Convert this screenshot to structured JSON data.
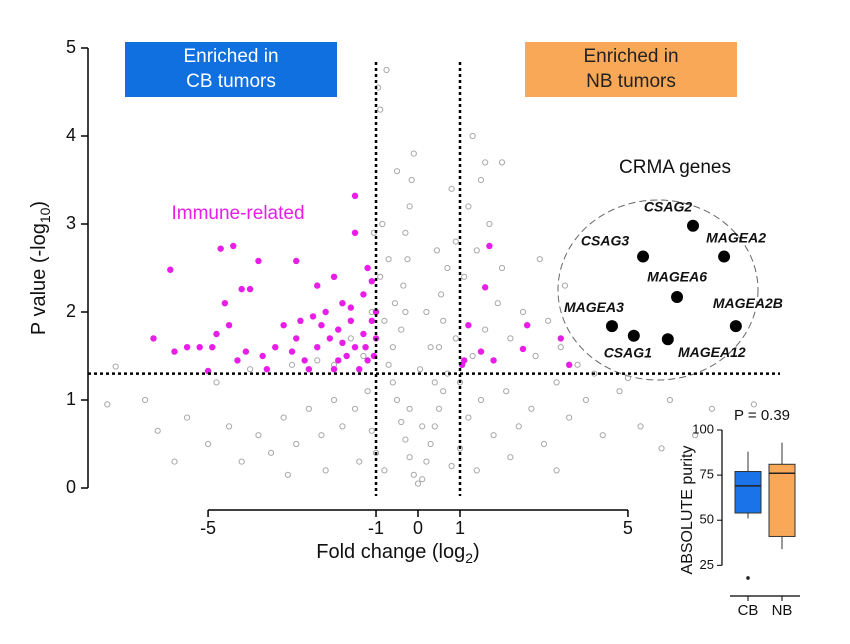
{
  "chart_data": [
    {
      "type": "scatter",
      "xlabel": {
        "text": "Fold change (log",
        "sub": "2",
        "end": ")"
      },
      "ylabel": {
        "text": "P value (-log",
        "sub": "10",
        "end": ")"
      },
      "xlim": [
        -7.86,
        8.86
      ],
      "ylim": [
        0,
        5
      ],
      "xticks": [
        -5,
        -1,
        0,
        1,
        5
      ],
      "yticks": [
        0,
        1,
        2,
        3,
        4,
        5
      ],
      "thresholds": {
        "x": [
          -1,
          1
        ],
        "y": 1.3
      },
      "banners": [
        {
          "lines": [
            "Enriched in",
            "CB tumors"
          ],
          "color": "#1070e0"
        },
        {
          "lines": [
            "Enriched in",
            "NB tumors"
          ],
          "color": "#f9a857"
        }
      ],
      "series": [
        {
          "color": "#a8a8a8",
          "x": [
            0,
            0.1,
            -0.1,
            0.2,
            -0.2,
            0.3,
            -0.3,
            0.4,
            -0.4,
            0.5,
            -0.5,
            0.6,
            -0.6,
            0.7,
            -0.7,
            0.3,
            -0.4,
            -0.3,
            -0.35,
            -0.25,
            -0.3,
            -0.2,
            -0.15,
            -0.1,
            0.5,
            0.6,
            0.55,
            0.7,
            0.9,
            -0.6,
            -0.55,
            -0.8,
            -0.9,
            -1.2,
            -1.5,
            -1.8,
            -2.0,
            -2.3,
            -2.6,
            -2.9,
            -3.2,
            -3.5,
            -3.8,
            -4.2,
            -4.5,
            -5.0,
            -5.5,
            -6.5,
            -7.4,
            -7.2,
            -1.0,
            -0.8,
            0.8,
            1.0,
            1.2,
            1.5,
            1.8,
            2.1,
            2.4,
            2.7,
            3.0,
            3.3,
            3.6,
            4.0,
            4.4,
            4.8,
            5.3,
            6.0,
            7.0,
            8.0,
            1.3,
            1.6,
            1.9,
            2.2,
            2.5,
            2.8,
            3.1,
            3.4,
            3.8,
            1.1,
            1.4,
            1.7,
            2.0,
            1.2,
            1.5,
            1.3,
            1.6,
            2.0,
            -0.9,
            -0.95,
            -0.75,
            -1.3,
            -1.6,
            -2.0,
            -2.4,
            -1.1,
            -1.05,
            -0.85,
            -4.0,
            -3.0,
            0.4,
            -0.2,
            0.1,
            0.05,
            -0.5,
            0.45,
            0.8,
            1.0,
            -1.1,
            -1.4,
            1.4,
            2.2,
            -2.2,
            -3.1,
            3.3,
            5.8,
            -5.8,
            -6.2,
            6.6,
            4.2,
            5.0,
            -4.8,
            2.9,
            3.5,
            0.9,
            -0.7,
            0.2
          ],
          "values": [
            0.05,
            0.1,
            0.15,
            0.3,
            0.35,
            0.5,
            0.55,
            0.7,
            0.75,
            0.9,
            1.0,
            1.1,
            1.2,
            1.3,
            1.4,
            1.6,
            1.8,
            2.0,
            2.3,
            2.6,
            2.9,
            3.2,
            3.5,
            3.8,
            1.6,
            1.9,
            2.2,
            2.5,
            2.8,
            1.6,
            2.1,
            1.9,
            2.4,
            1.1,
            0.9,
            0.7,
            1.0,
            0.6,
            0.9,
            0.5,
            0.8,
            0.4,
            0.6,
            0.3,
            0.7,
            0.5,
            0.8,
            1.0,
            0.95,
            1.38,
            0.4,
            0.2,
            0.25,
            0.45,
            0.8,
            1.0,
            0.6,
            1.1,
            0.7,
            0.9,
            0.5,
            1.2,
            0.8,
            1.0,
            0.6,
            1.1,
            0.7,
            1.0,
            0.9,
            0.95,
            1.5,
            1.8,
            2.1,
            1.7,
            2.0,
            1.5,
            1.9,
            1.6,
            1.4,
            2.4,
            2.7,
            3.0,
            2.5,
            3.2,
            3.5,
            4.0,
            3.7,
            3.7,
            4.3,
            4.55,
            4.75,
            1.5,
            1.7,
            1.4,
            1.45,
            2.0,
            2.9,
            3.0,
            1.35,
            1.4,
            1.2,
            0.9,
            0.7,
            1.35,
            3.6,
            2.7,
            3.4,
            1.2,
            0.65,
            0.3,
            0.2,
            0.35,
            0.2,
            0.15,
            0.2,
            0.45,
            0.3,
            0.65,
            0.6,
            1.3,
            1.25,
            1.2,
            2.6,
            2.3,
            1.7,
            2.6,
            2.0
          ]
        },
        {
          "name": "Immune-related",
          "color": "#e81ee8",
          "x": [
            -5.9,
            -4.7,
            -4.4,
            -3.8,
            -2.9,
            -1.5,
            -1.5,
            -1.2,
            -2.0,
            -2.4,
            -4.6,
            -4.2,
            -4.0,
            -3.2,
            -2.8,
            -2.5,
            -2.2,
            -1.8,
            -1.6,
            -1.3,
            -1.1,
            -1.0,
            -6.3,
            -5.8,
            -5.5,
            -5.2,
            -4.9,
            -4.8,
            -4.5,
            -4.3,
            -4.1,
            -3.7,
            -3.4,
            -3.0,
            -2.7,
            -2.4,
            -2.1,
            -1.9,
            -1.7,
            -1.5,
            -1.3,
            -1.2,
            -1.1,
            -2.6,
            -2.0,
            -1.4,
            -1.05,
            -3.6,
            -5.0,
            -1.8,
            -2.3,
            -1.6,
            -1.0,
            -1.25,
            -1.9,
            -2.9,
            1.1,
            1.2,
            1.6,
            1.7,
            1.5,
            1.8,
            2.5,
            2.6,
            3.4,
            3.6,
            1.05
          ],
          "values": [
            2.48,
            2.72,
            2.75,
            2.58,
            2.58,
            3.32,
            2.9,
            2.5,
            2.4,
            2.3,
            2.1,
            2.26,
            2.26,
            1.85,
            1.9,
            1.95,
            2.0,
            2.1,
            2.05,
            2.2,
            2.35,
            2.0,
            1.7,
            1.55,
            1.6,
            1.6,
            1.6,
            1.75,
            1.85,
            1.45,
            1.55,
            1.5,
            1.6,
            1.55,
            1.45,
            1.6,
            1.7,
            1.8,
            1.5,
            1.6,
            1.75,
            1.45,
            1.9,
            1.35,
            1.35,
            1.35,
            1.5,
            1.35,
            1.33,
            1.65,
            1.85,
            1.9,
            1.7,
            1.6,
            1.45,
            1.7,
            1.45,
            1.85,
            2.28,
            2.75,
            1.55,
            1.45,
            1.58,
            1.85,
            1.7,
            1.4,
            1.4
          ]
        }
      ],
      "crma": {
        "title": "CRMA genes",
        "color": "#000000",
        "names": [
          "CSAG2",
          "MAGEA2",
          "CSAG3",
          "MAGEA6",
          "MAGEA3",
          "CSAG1",
          "MAGEA12",
          "MAGEA2B"
        ],
        "x": [
          6.55,
          7.29,
          5.36,
          6.17,
          4.62,
          5.14,
          5.95,
          7.57
        ],
        "values": [
          2.98,
          2.63,
          2.63,
          2.17,
          1.84,
          1.73,
          1.69,
          1.84
        ]
      }
    },
    {
      "type": "box",
      "annotation": "P = 0.39",
      "ylabel": "ABSOLUTE purity",
      "ylim": [
        8,
        100
      ],
      "yticks": [
        25,
        50,
        75,
        100
      ],
      "categories": [
        "CB",
        "NB"
      ],
      "boxes": [
        {
          "color": "#1a73e8",
          "whisker_low": 51,
          "q1": 54,
          "median": 69,
          "q3": 77,
          "whisker_high": 88,
          "outliers": [
            18
          ]
        },
        {
          "color": "#f9a857",
          "whisker_low": 34,
          "q1": 41,
          "median": 76,
          "q3": 81,
          "whisker_high": 93,
          "outliers": []
        }
      ]
    }
  ]
}
